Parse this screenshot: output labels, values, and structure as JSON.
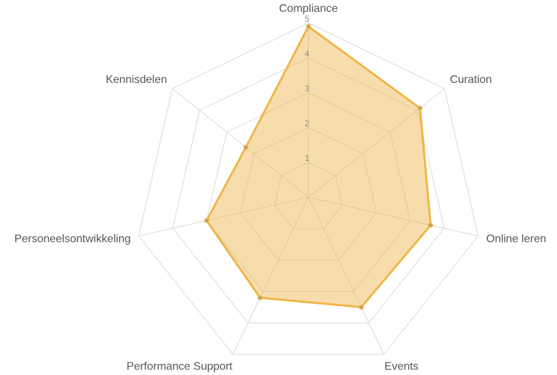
{
  "chart_data": {
    "type": "radar",
    "categories": [
      "Compliance",
      "Curation",
      "Online leren",
      "Events",
      "Performance Support",
      "Personeelsontwikkeling",
      "Kennisdelen"
    ],
    "values": [
      4.9,
      4.1,
      3.6,
      3.5,
      3.2,
      3.0,
      2.3
    ],
    "color": "#f0b446",
    "rlim": [
      0,
      5
    ],
    "rticks": [
      1,
      2,
      3,
      4,
      5
    ],
    "grid": true
  }
}
